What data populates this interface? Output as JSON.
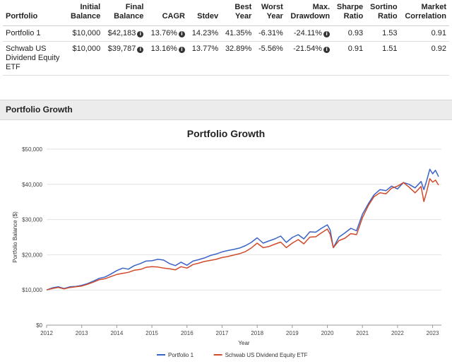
{
  "stats_table": {
    "headers": [
      [
        "Portfolio"
      ],
      [
        "Initial",
        "Balance"
      ],
      [
        "Final",
        "Balance"
      ],
      [
        "CAGR"
      ],
      [
        "Stdev"
      ],
      [
        "Best",
        "Year"
      ],
      [
        "Worst",
        "Year"
      ],
      [
        "Max.",
        "Drawdown"
      ],
      [
        "Sharpe",
        "Ratio"
      ],
      [
        "Sortino",
        "Ratio"
      ],
      [
        "Market",
        "Correlation"
      ]
    ],
    "rows": [
      {
        "name": "Portfolio 1",
        "initial_balance": "$10,000",
        "final_balance": "$42,183",
        "cagr": "13.76%",
        "stdev": "14.23%",
        "best_year": "41.35%",
        "worst_year": "-6.31%",
        "max_drawdown": "-24.11%",
        "sharpe": "0.93",
        "sortino": "1.53",
        "market_correlation": "0.91"
      },
      {
        "name": "Schwab US Dividend Equity ETF",
        "initial_balance": "$10,000",
        "final_balance": "$39,787",
        "cagr": "13.16%",
        "stdev": "13.77%",
        "best_year": "32.89%",
        "worst_year": "-5.56%",
        "max_drawdown": "-21.54%",
        "sharpe": "0.91",
        "sortino": "1.51",
        "market_correlation": "0.92"
      }
    ],
    "info_icon": "info-circle-icon",
    "info_glyph": "i"
  },
  "section": {
    "title": "Portfolio Growth"
  },
  "chart_data": {
    "type": "line",
    "title": "Portfolio Growth",
    "xlabel": "Year",
    "ylabel": "Portfolio Balance ($)",
    "xlim": [
      2012,
      2023.25
    ],
    "ylim": [
      0,
      50000
    ],
    "x_ticks": [
      "2012",
      "2013",
      "2014",
      "2015",
      "2016",
      "2017",
      "2018",
      "2019",
      "2020",
      "2021",
      "2022",
      "2023"
    ],
    "y_ticks": [
      "$0",
      "$10,000",
      "$20,000",
      "$30,000",
      "$40,000",
      "$50,000"
    ],
    "grid": true,
    "legend_position": "bottom",
    "series": [
      {
        "name": "Portfolio 1",
        "color": "#3a63c8",
        "points": [
          [
            2012.0,
            10000
          ],
          [
            2012.17,
            10600
          ],
          [
            2012.33,
            10900
          ],
          [
            2012.5,
            10400
          ],
          [
            2012.67,
            10900
          ],
          [
            2012.83,
            11000
          ],
          [
            2013.0,
            11300
          ],
          [
            2013.17,
            11800
          ],
          [
            2013.33,
            12500
          ],
          [
            2013.5,
            13300
          ],
          [
            2013.67,
            13700
          ],
          [
            2013.83,
            14500
          ],
          [
            2014.0,
            15500
          ],
          [
            2014.17,
            16200
          ],
          [
            2014.33,
            15900
          ],
          [
            2014.5,
            16900
          ],
          [
            2014.67,
            17500
          ],
          [
            2014.83,
            18200
          ],
          [
            2015.0,
            18300
          ],
          [
            2015.17,
            18700
          ],
          [
            2015.33,
            18500
          ],
          [
            2015.5,
            17500
          ],
          [
            2015.67,
            16900
          ],
          [
            2015.83,
            17900
          ],
          [
            2016.0,
            17000
          ],
          [
            2016.17,
            18200
          ],
          [
            2016.33,
            18600
          ],
          [
            2016.5,
            19100
          ],
          [
            2016.67,
            19800
          ],
          [
            2016.83,
            20200
          ],
          [
            2017.0,
            20800
          ],
          [
            2017.17,
            21200
          ],
          [
            2017.33,
            21500
          ],
          [
            2017.5,
            21900
          ],
          [
            2017.67,
            22600
          ],
          [
            2017.83,
            23500
          ],
          [
            2018.0,
            24800
          ],
          [
            2018.17,
            23300
          ],
          [
            2018.33,
            23900
          ],
          [
            2018.5,
            24500
          ],
          [
            2018.67,
            25300
          ],
          [
            2018.83,
            23500
          ],
          [
            2019.0,
            24900
          ],
          [
            2019.17,
            25700
          ],
          [
            2019.33,
            24500
          ],
          [
            2019.5,
            26500
          ],
          [
            2019.67,
            26400
          ],
          [
            2019.83,
            27500
          ],
          [
            2020.0,
            28500
          ],
          [
            2020.08,
            27000
          ],
          [
            2020.17,
            22000
          ],
          [
            2020.33,
            25000
          ],
          [
            2020.5,
            26200
          ],
          [
            2020.67,
            27500
          ],
          [
            2020.83,
            26800
          ],
          [
            2021.0,
            31500
          ],
          [
            2021.17,
            34500
          ],
          [
            2021.33,
            37000
          ],
          [
            2021.5,
            38500
          ],
          [
            2021.67,
            38200
          ],
          [
            2021.83,
            39500
          ],
          [
            2022.0,
            38700
          ],
          [
            2022.17,
            40500
          ],
          [
            2022.33,
            40000
          ],
          [
            2022.5,
            39000
          ],
          [
            2022.67,
            40800
          ],
          [
            2022.75,
            38500
          ],
          [
            2022.83,
            41000
          ],
          [
            2022.92,
            44300
          ],
          [
            2023.0,
            43000
          ],
          [
            2023.08,
            44000
          ],
          [
            2023.17,
            42183
          ]
        ]
      },
      {
        "name": "Schwab US Dividend Equity ETF",
        "color": "#d14b2a",
        "points": [
          [
            2012.0,
            10000
          ],
          [
            2012.17,
            10400
          ],
          [
            2012.33,
            10700
          ],
          [
            2012.5,
            10300
          ],
          [
            2012.67,
            10700
          ],
          [
            2012.83,
            10900
          ],
          [
            2013.0,
            11100
          ],
          [
            2013.17,
            11600
          ],
          [
            2013.33,
            12200
          ],
          [
            2013.5,
            12900
          ],
          [
            2013.67,
            13200
          ],
          [
            2013.83,
            13800
          ],
          [
            2014.0,
            14400
          ],
          [
            2014.17,
            14700
          ],
          [
            2014.33,
            15000
          ],
          [
            2014.5,
            15600
          ],
          [
            2014.67,
            15800
          ],
          [
            2014.83,
            16400
          ],
          [
            2015.0,
            16600
          ],
          [
            2015.17,
            16500
          ],
          [
            2015.33,
            16200
          ],
          [
            2015.5,
            16000
          ],
          [
            2015.67,
            15700
          ],
          [
            2015.83,
            16600
          ],
          [
            2016.0,
            16200
          ],
          [
            2016.17,
            17200
          ],
          [
            2016.33,
            17600
          ],
          [
            2016.5,
            18100
          ],
          [
            2016.67,
            18400
          ],
          [
            2016.83,
            18700
          ],
          [
            2017.0,
            19200
          ],
          [
            2017.17,
            19500
          ],
          [
            2017.33,
            19900
          ],
          [
            2017.5,
            20300
          ],
          [
            2017.67,
            20900
          ],
          [
            2017.83,
            21900
          ],
          [
            2018.0,
            23300
          ],
          [
            2018.17,
            22000
          ],
          [
            2018.33,
            22300
          ],
          [
            2018.5,
            23000
          ],
          [
            2018.67,
            23600
          ],
          [
            2018.83,
            22000
          ],
          [
            2019.0,
            23300
          ],
          [
            2019.17,
            24300
          ],
          [
            2019.33,
            23100
          ],
          [
            2019.5,
            25000
          ],
          [
            2019.67,
            25100
          ],
          [
            2019.83,
            26200
          ],
          [
            2020.0,
            27300
          ],
          [
            2020.08,
            25800
          ],
          [
            2020.17,
            22000
          ],
          [
            2020.33,
            24000
          ],
          [
            2020.5,
            24700
          ],
          [
            2020.67,
            26000
          ],
          [
            2020.83,
            25700
          ],
          [
            2021.0,
            30500
          ],
          [
            2021.17,
            34000
          ],
          [
            2021.33,
            36500
          ],
          [
            2021.5,
            37600
          ],
          [
            2021.67,
            37300
          ],
          [
            2021.83,
            38900
          ],
          [
            2022.0,
            39500
          ],
          [
            2022.17,
            40500
          ],
          [
            2022.33,
            39200
          ],
          [
            2022.5,
            37600
          ],
          [
            2022.67,
            39400
          ],
          [
            2022.75,
            35100
          ],
          [
            2022.83,
            37900
          ],
          [
            2022.92,
            41600
          ],
          [
            2023.0,
            40600
          ],
          [
            2023.08,
            41200
          ],
          [
            2023.17,
            39787
          ]
        ]
      }
    ]
  }
}
